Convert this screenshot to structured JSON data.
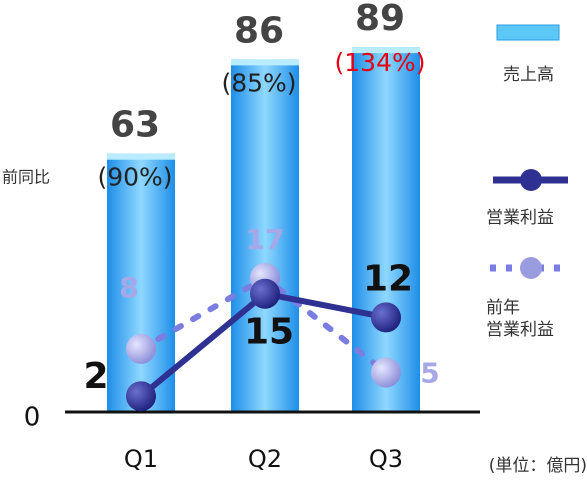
{
  "chart_data": {
    "type": "bar",
    "categories": [
      "Q1",
      "Q2",
      "Q3"
    ],
    "series": [
      {
        "name": "売上高",
        "type": "bar",
        "color": "#29a9f0",
        "values": [
          63,
          86,
          89
        ]
      },
      {
        "name": "営業利益",
        "type": "line",
        "axis": "y2",
        "color": "#2e3192",
        "values": [
          2,
          15,
          12
        ]
      },
      {
        "name": "前年\n営業利益",
        "type": "line",
        "axis": "y2",
        "dashed": true,
        "color": "#7b7de0",
        "marker_color": "#9a9ce0",
        "values": [
          8,
          17,
          5
        ]
      }
    ],
    "yoy": {
      "label": "前同比",
      "values": [
        90,
        85,
        134
      ],
      "value_labels": [
        "(90%)",
        "(85%)",
        "(134%)"
      ],
      "colors": [
        "#222222",
        "#222222",
        "#e60012"
      ]
    },
    "ylim": [
      0,
      100
    ],
    "yticks": [
      0
    ],
    "y2lim": [
      0,
      52
    ],
    "unit_note": "(単位：億円)"
  }
}
